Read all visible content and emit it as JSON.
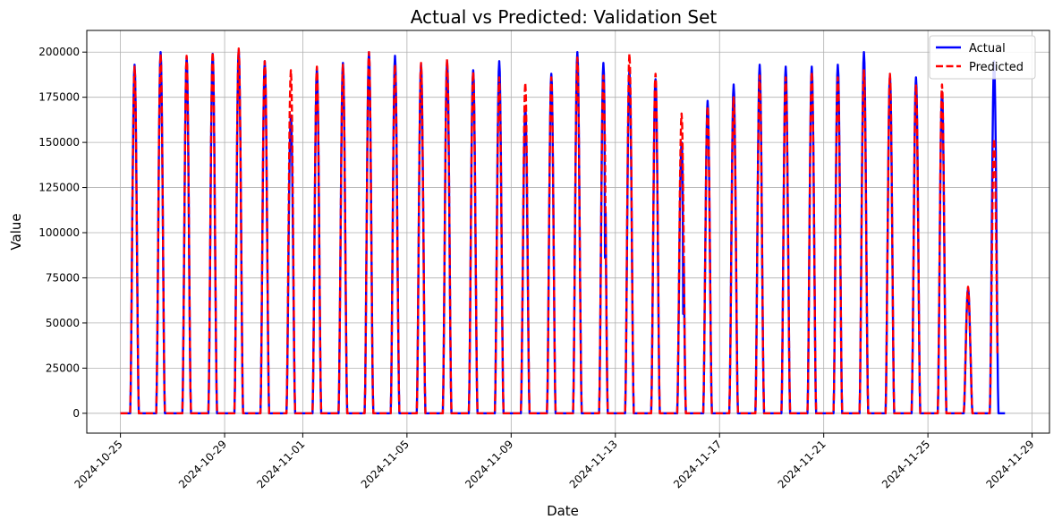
{
  "chart_data": {
    "type": "line",
    "title": "Actual vs Predicted: Validation Set",
    "xlabel": "Date",
    "ylabel": "Value",
    "xlim": [
      "2024-10-23T17:00",
      "2024-11-29T16:00"
    ],
    "ylim": [
      -11000,
      212000
    ],
    "grid": true,
    "legend_position": "top-right",
    "x_ticks": [
      "2024-10-25",
      "2024-10-29",
      "2024-11-01",
      "2024-11-05",
      "2024-11-09",
      "2024-11-13",
      "2024-11-17",
      "2024-11-21",
      "2024-11-25",
      "2024-11-29"
    ],
    "y_ticks": [
      0,
      25000,
      50000,
      75000,
      100000,
      125000,
      150000,
      175000,
      200000
    ],
    "series_defaults": {
      "start": "2024-10-25",
      "peak_hour": 13,
      "half_width_hours": 4
    },
    "series": [
      {
        "name": "Actual",
        "color": "#0000ff",
        "style": "solid",
        "daily_peaks": [
          [
            "2024-10-25",
            193000
          ],
          [
            "2024-10-26",
            200000
          ],
          [
            "2024-10-27",
            197000
          ],
          [
            "2024-10-28",
            199000
          ],
          [
            "2024-10-29",
            201000
          ],
          [
            "2024-10-30",
            195000
          ],
          [
            "2024-10-31",
            165000
          ],
          [
            "2024-11-01",
            191000
          ],
          [
            "2024-11-02",
            194000
          ],
          [
            "2024-11-03",
            200000
          ],
          [
            "2024-11-04",
            198000
          ],
          [
            "2024-11-05",
            193000
          ],
          [
            "2024-11-06",
            195000
          ],
          [
            "2024-11-07",
            190000
          ],
          [
            "2024-11-08",
            195000
          ],
          [
            "2024-11-09",
            170000
          ],
          [
            "2024-11-10",
            188000
          ],
          [
            "2024-11-11",
            200000
          ],
          [
            "2024-11-12",
            194000
          ],
          [
            "2024-11-13",
            190000
          ],
          [
            "2024-11-14",
            185000
          ],
          [
            "2024-11-15",
            150000
          ],
          [
            "2024-11-16",
            173000
          ],
          [
            "2024-11-17",
            182000
          ],
          [
            "2024-11-18",
            193000
          ],
          [
            "2024-11-19",
            192000
          ],
          [
            "2024-11-20",
            192000
          ],
          [
            "2024-11-21",
            193000
          ],
          [
            "2024-11-22",
            200000
          ],
          [
            "2024-11-23",
            187000
          ],
          [
            "2024-11-24",
            186000
          ],
          [
            "2024-11-25",
            178000
          ],
          [
            "2024-11-26",
            69000
          ],
          [
            "2024-11-27",
            195000
          ]
        ],
        "dips": [
          [
            "2024-11-12",
            86000
          ],
          [
            "2024-11-15",
            55000
          ]
        ],
        "end": "2024-11-27T23:00"
      },
      {
        "name": "Predicted",
        "color": "#ff0000",
        "style": "dashed",
        "daily_peaks": [
          [
            "2024-10-25",
            192000
          ],
          [
            "2024-10-26",
            199000
          ],
          [
            "2024-10-27",
            198000
          ],
          [
            "2024-10-28",
            200000
          ],
          [
            "2024-10-29",
            202000
          ],
          [
            "2024-10-30",
            195000
          ],
          [
            "2024-10-31",
            190000
          ],
          [
            "2024-11-01",
            192000
          ],
          [
            "2024-11-02",
            193000
          ],
          [
            "2024-11-03",
            200000
          ],
          [
            "2024-11-04",
            193000
          ],
          [
            "2024-11-05",
            194000
          ],
          [
            "2024-11-06",
            196000
          ],
          [
            "2024-11-07",
            189000
          ],
          [
            "2024-11-08",
            186000
          ],
          [
            "2024-11-09",
            183000
          ],
          [
            "2024-11-10",
            186000
          ],
          [
            "2024-11-11",
            197000
          ],
          [
            "2024-11-12",
            187000
          ],
          [
            "2024-11-13",
            199000
          ],
          [
            "2024-11-14",
            188000
          ],
          [
            "2024-11-15",
            166000
          ],
          [
            "2024-11-16",
            170000
          ],
          [
            "2024-11-17",
            175000
          ],
          [
            "2024-11-18",
            187000
          ],
          [
            "2024-11-19",
            186000
          ],
          [
            "2024-11-20",
            189000
          ],
          [
            "2024-11-21",
            186000
          ],
          [
            "2024-11-22",
            190000
          ],
          [
            "2024-11-23",
            188000
          ],
          [
            "2024-11-24",
            182000
          ],
          [
            "2024-11-25",
            182000
          ],
          [
            "2024-11-26",
            70000
          ],
          [
            "2024-11-27",
            152000
          ]
        ],
        "dips": [
          [
            "2024-11-12",
            150000
          ],
          [
            "2024-11-15",
            120000
          ],
          [
            "2024-11-27",
            110000
          ]
        ],
        "end": "2024-11-27T16:00"
      }
    ]
  }
}
